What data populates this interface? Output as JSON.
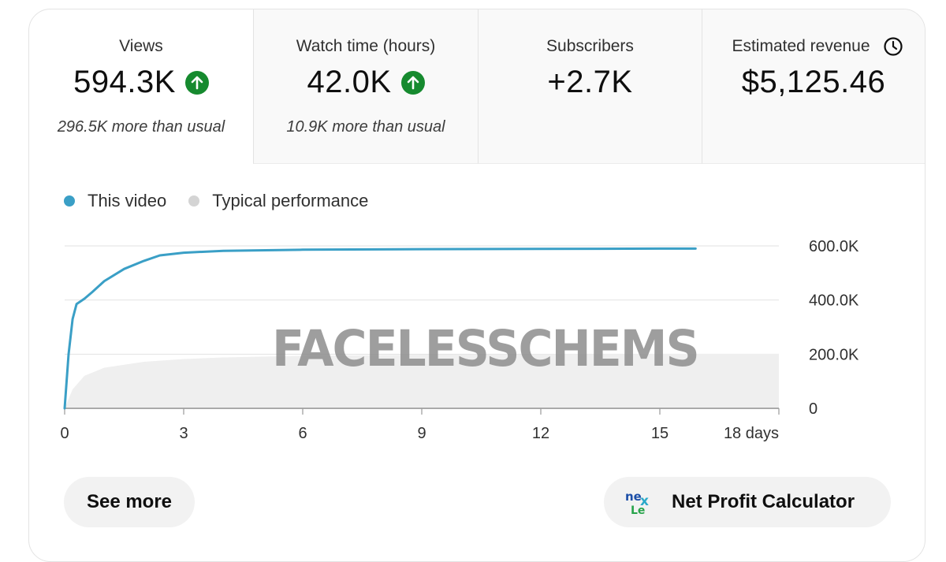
{
  "metrics": [
    {
      "label": "Views",
      "value": "594.3K",
      "sub": "296.5K more than usual",
      "trend": "up"
    },
    {
      "label": "Watch time (hours)",
      "value": "42.0K",
      "sub": "10.9K more than usual",
      "trend": "up"
    },
    {
      "label": "Subscribers",
      "value": "+2.7K",
      "sub": ""
    },
    {
      "label": "Estimated revenue",
      "value": "$5,125.46",
      "sub": "",
      "icon": "clock-icon"
    }
  ],
  "legend": {
    "this_video": "This video",
    "typical": "Typical performance"
  },
  "colors": {
    "this_video": "#3a9fc6",
    "typical": "#d4d4d4",
    "trend_up": "#168a2f"
  },
  "chart_data": {
    "type": "line",
    "x_tick_labels": [
      "0",
      "3",
      "6",
      "9",
      "12",
      "15",
      "18 days"
    ],
    "y_tick_labels": [
      "0",
      "200.0K",
      "400.0K",
      "600.0K"
    ],
    "xlim": [
      0,
      18
    ],
    "ylim": [
      0,
      600000
    ],
    "series": [
      {
        "name": "This video",
        "x": [
          0,
          0.1,
          0.2,
          0.3,
          0.5,
          0.7,
          1.0,
          1.5,
          2.0,
          2.4,
          3.0,
          4.0,
          6.0,
          9.0,
          12.0,
          15.0,
          15.9
        ],
        "y": [
          0,
          200000,
          330000,
          385000,
          405000,
          430000,
          470000,
          515000,
          545000,
          565000,
          575000,
          582000,
          586000,
          588000,
          589000,
          590000,
          590000
        ]
      },
      {
        "name": "Typical performance",
        "x": [
          0,
          0.2,
          0.5,
          1.0,
          2.0,
          3.0,
          4.0,
          6.0,
          9.0,
          12.0,
          15.0,
          18.0
        ],
        "y": [
          0,
          70000,
          120000,
          150000,
          172000,
          182000,
          188000,
          194000,
          198000,
          200000,
          201000,
          201000
        ]
      }
    ]
  },
  "watermark": "FACELESSCHEMS",
  "buttons": {
    "see_more": "See more",
    "net_profit": "Net Profit Calculator"
  },
  "logo_text": {
    "top": "ne",
    "mid": "x",
    "bottom": "Le"
  }
}
